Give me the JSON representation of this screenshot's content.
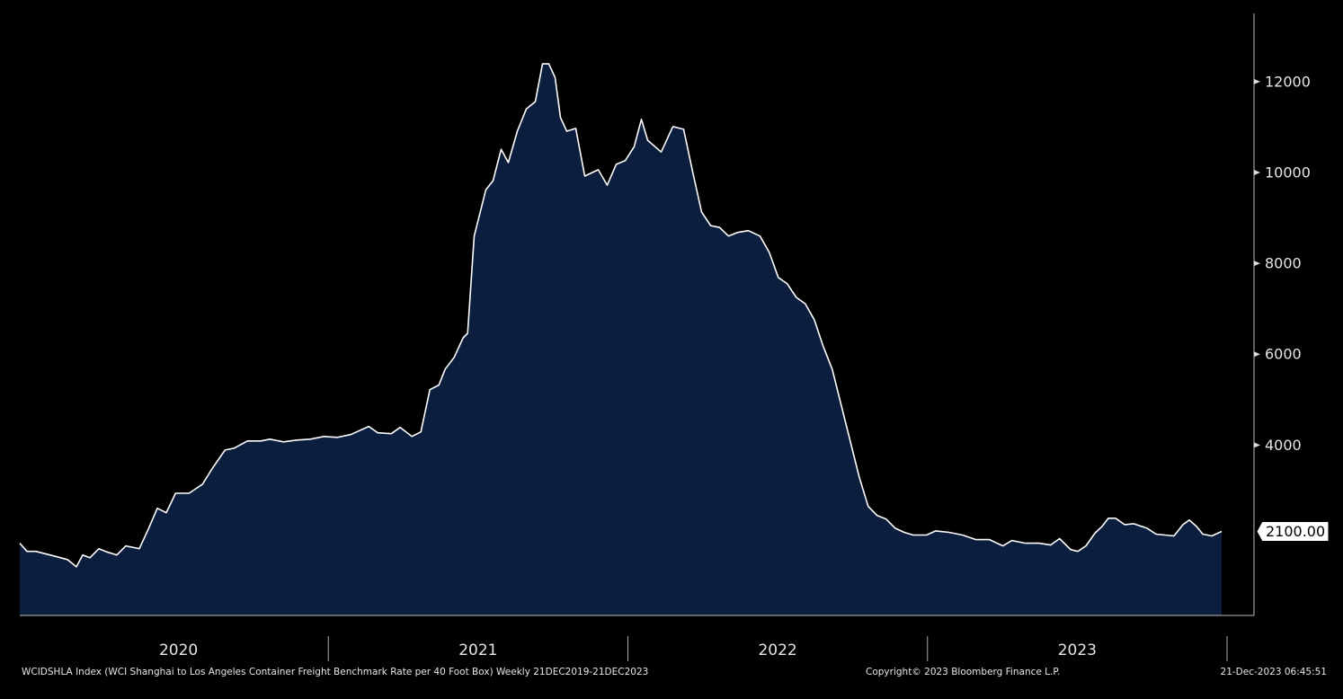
{
  "chart_data": {
    "type": "area",
    "series": [
      {
        "name": "WCIDSHLA Index",
        "color": "#ffffff",
        "fill": "#0c1e3d",
        "x": [
          2019.97,
          2019.994,
          2020.024,
          2020.084,
          2020.129,
          2020.159,
          2020.18,
          2020.204,
          2020.234,
          2020.264,
          2020.294,
          2020.324,
          2020.369,
          2020.399,
          2020.429,
          2020.459,
          2020.49,
          2020.535,
          2020.58,
          2020.61,
          2020.655,
          2020.685,
          2020.73,
          2020.775,
          2020.805,
          2020.85,
          2020.895,
          2020.94,
          2020.985,
          2021.03,
          2021.075,
          2021.135,
          2021.165,
          2021.21,
          2021.24,
          2021.279,
          2021.309,
          2021.339,
          2021.369,
          2021.39,
          2021.42,
          2021.45,
          2021.465,
          2021.487,
          2021.526,
          2021.55,
          2021.577,
          2021.601,
          2021.631,
          2021.661,
          2021.691,
          2021.715,
          2021.736,
          2021.757,
          2021.775,
          2021.796,
          2021.826,
          2021.856,
          2021.901,
          2021.931,
          2021.961,
          2021.991,
          2022.021,
          2022.045,
          2022.066,
          2022.111,
          2022.15,
          2022.186,
          2022.216,
          2022.246,
          2022.276,
          2022.306,
          2022.336,
          2022.366,
          2022.402,
          2022.441,
          2022.472,
          2022.502,
          2022.532,
          2022.562,
          2022.592,
          2022.622,
          2022.652,
          2022.682,
          2022.712,
          2022.742,
          2022.772,
          2022.802,
          2022.832,
          2022.862,
          2022.892,
          2022.922,
          2022.952,
          2022.997,
          2023.027,
          2023.072,
          2023.117,
          2023.162,
          2023.207,
          2023.252,
          2023.282,
          2023.327,
          2023.372,
          2023.411,
          2023.441,
          2023.478,
          2023.502,
          2023.529,
          2023.559,
          2023.583,
          2023.604,
          2023.628,
          2023.658,
          2023.688,
          2023.733,
          2023.763,
          2023.793,
          2023.823,
          2023.853,
          2023.874,
          2023.898,
          2023.919,
          2023.949,
          2023.982
        ],
        "values": [
          1840,
          1660,
          1660,
          1560,
          1480,
          1320,
          1580,
          1520,
          1720,
          1640,
          1580,
          1780,
          1720,
          2150,
          2610,
          2510,
          2940,
          2940,
          3140,
          3460,
          3890,
          3930,
          4090,
          4090,
          4130,
          4070,
          4110,
          4130,
          4190,
          4170,
          4230,
          4410,
          4270,
          4250,
          4390,
          4190,
          4290,
          5220,
          5320,
          5670,
          5930,
          6360,
          6460,
          8600,
          9620,
          9820,
          10510,
          10220,
          10910,
          11400,
          11560,
          12390,
          12390,
          12090,
          11210,
          10910,
          10970,
          9920,
          10060,
          9720,
          10180,
          10260,
          10570,
          11170,
          10710,
          10450,
          11010,
          10950,
          10020,
          9130,
          8830,
          8790,
          8600,
          8680,
          8720,
          8600,
          8240,
          7690,
          7550,
          7250,
          7110,
          6760,
          6170,
          5670,
          4880,
          4090,
          3300,
          2650,
          2450,
          2370,
          2170,
          2080,
          2020,
          2020,
          2110,
          2080,
          2020,
          1920,
          1920,
          1780,
          1900,
          1840,
          1840,
          1800,
          1940,
          1700,
          1660,
          1780,
          2060,
          2210,
          2390,
          2390,
          2250,
          2270,
          2170,
          2040,
          2020,
          2000,
          2250,
          2350,
          2210,
          2040,
          2000,
          2100
        ]
      }
    ],
    "last_value_label": "2100.00",
    "xlim": [
      2019.97,
      2024.09
    ],
    "xticks": [
      {
        "value": 2020.5,
        "label": "2020"
      },
      {
        "value": 2021.5,
        "label": "2021"
      },
      {
        "value": 2022.5,
        "label": "2022"
      },
      {
        "value": 2023.5,
        "label": "2023"
      }
    ],
    "xseparators": [
      2021,
      2022,
      2023,
      2024
    ],
    "ylim": [
      250,
      13500
    ],
    "yticks": [
      4000,
      6000,
      8000,
      10000,
      12000
    ],
    "footer_left": "WCIDSHLA Index (WCI Shanghai to Los Angeles Container Freight Benchmark Rate per 40 Foot Box)  Weekly 21DEC2019-21DEC2023",
    "footer_center": "Copyright© 2023 Bloomberg Finance L.P.",
    "footer_right": "21-Dec-2023 06:45:51"
  }
}
